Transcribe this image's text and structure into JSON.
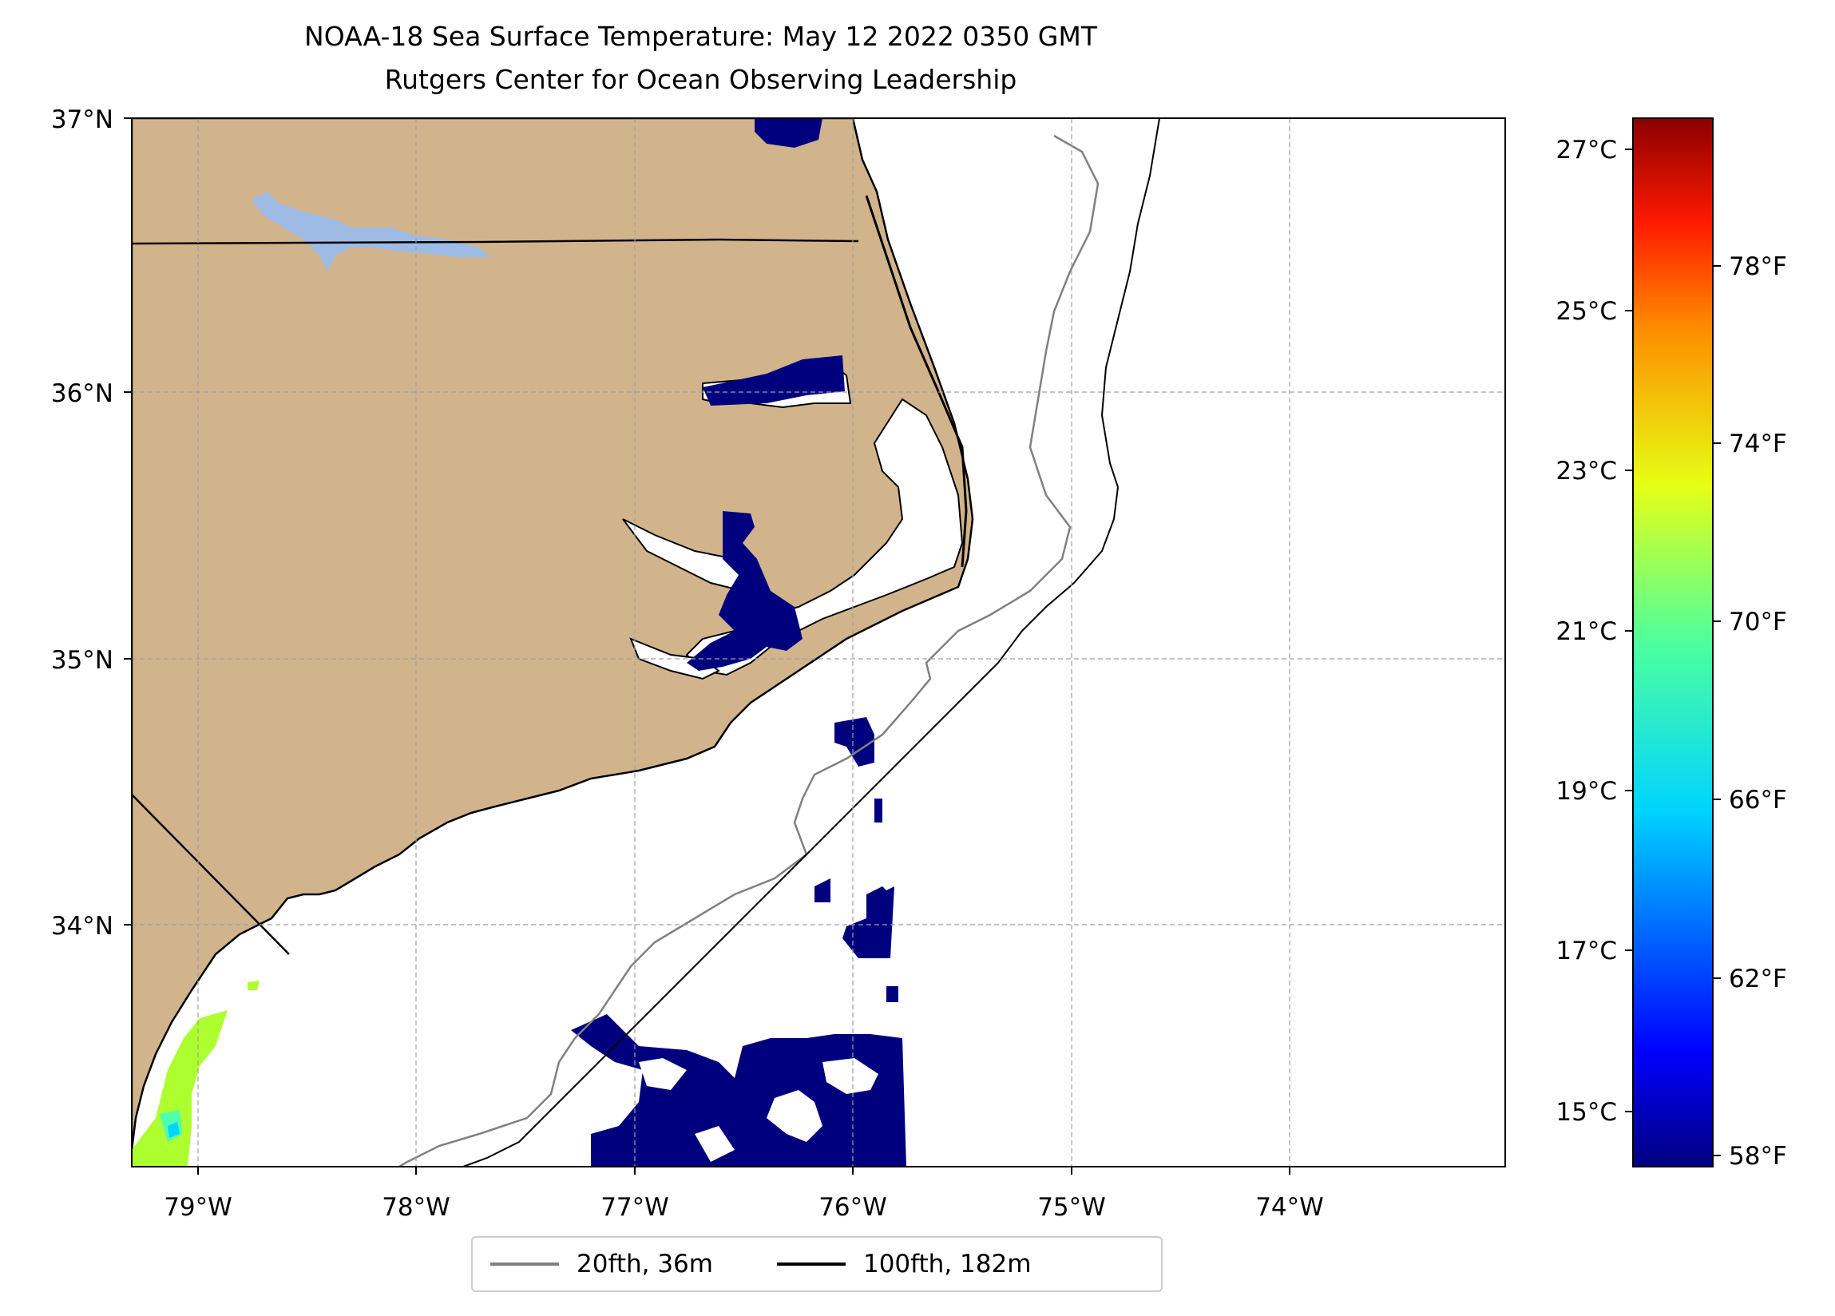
{
  "title": "NOAA-18 Sea Surface Temperature: May 12 2022 0350 GMT",
  "subtitle": "Rutgers Center for Ocean Observing Leadership",
  "map": {
    "lon_range": [
      -79.3,
      -73.0
    ],
    "lat_range": [
      33.1,
      37.0
    ],
    "lat_ticks": [
      "37°N",
      "36°N",
      "35°N",
      "34°N"
    ],
    "lon_ticks": [
      "79°W",
      "78°W",
      "77°W",
      "76°W",
      "75°W",
      "74°W"
    ],
    "land_color": "#d2b48c",
    "lake_color": "#9dbbe4",
    "ocean_color": "#ffffff",
    "grid": "dashed gray"
  },
  "colorbar": {
    "colormap": "jet",
    "celsius_labels": [
      "27°C",
      "25°C",
      "23°C",
      "21°C",
      "19°C",
      "17°C",
      "15°C"
    ],
    "fahrenheit_labels": [
      "78°F",
      "74°F",
      "70°F",
      "66°F",
      "62°F",
      "58°F"
    ]
  },
  "legend": {
    "items": [
      {
        "label": "20fth, 36m",
        "color": "#808080"
      },
      {
        "label": "100fth, 182m",
        "color": "#000000"
      }
    ]
  }
}
